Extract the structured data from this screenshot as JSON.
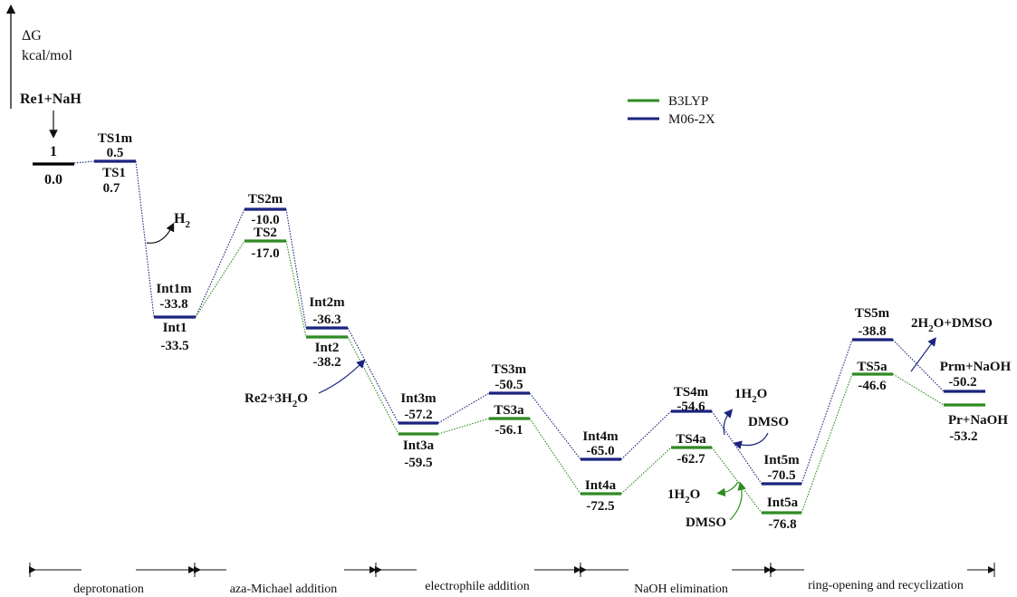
{
  "axis": {
    "symbol": "ΔG",
    "unit": "kcal/mol"
  },
  "legend": [
    {
      "name": "B3LYP",
      "color": "#2e8b22"
    },
    {
      "name": "M06-2X",
      "color": "#1a237e"
    }
  ],
  "colors": {
    "b3lyp": "#2e8b22",
    "m062x": "#1a237e",
    "start": "#000000"
  },
  "start": {
    "reactants": "Re1+NaH",
    "species": "1",
    "energy": "0.0"
  },
  "states_m062x": [
    {
      "name": "TS1m",
      "energy": "0.5"
    },
    {
      "name": "Int1m",
      "energy": "-33.8"
    },
    {
      "name": "TS2m",
      "energy": "-10.0"
    },
    {
      "name": "Int2m",
      "energy": "-36.3"
    },
    {
      "name": "Int3m",
      "energy": "-57.2"
    },
    {
      "name": "TS3m",
      "energy": "-50.5"
    },
    {
      "name": "Int4m",
      "energy": "-65.0"
    },
    {
      "name": "TS4m",
      "energy": "-54.6"
    },
    {
      "name": "Int5m",
      "energy": "-70.5"
    },
    {
      "name": "TS5m",
      "energy": "-38.8"
    },
    {
      "name": "Prm+NaOH",
      "energy": "-50.2"
    }
  ],
  "states_b3lyp": [
    {
      "name": "TS1",
      "energy": "0.7"
    },
    {
      "name": "Int1",
      "energy": "-33.5"
    },
    {
      "name": "TS2",
      "energy": "-17.0"
    },
    {
      "name": "Int2",
      "energy": "-38.2"
    },
    {
      "name": "Int3a",
      "energy": "-59.5"
    },
    {
      "name": "TS3a",
      "energy": "-56.1"
    },
    {
      "name": "Int4a",
      "energy": "-72.5"
    },
    {
      "name": "TS4a",
      "energy": "-62.7"
    },
    {
      "name": "Int5a",
      "energy": "-76.8"
    },
    {
      "name": "TS5a",
      "energy": "-46.6"
    },
    {
      "name": "Pr+NaOH",
      "energy": "-53.2"
    }
  ],
  "annotations": {
    "h2": "H",
    "h2_sub": "2",
    "re2_main": "Re2+3H",
    "re2_sub": "2",
    "re2_end": "O",
    "water_top_pre": "1H",
    "water_top_sub": "2",
    "water_top_end": "O",
    "dmso_top": "DMSO",
    "water_bot_pre": "1H",
    "water_bot_sub": "2",
    "water_bot_end": "O",
    "dmso_bot": "DMSO",
    "release_pre": "2H",
    "release_sub": "2",
    "release_end": "O+DMSO"
  },
  "stages": [
    "deprotonation",
    "aza-Michael addition",
    "electrophile addition",
    "NaOH elimination",
    "ring-opening and recyclization"
  ]
}
